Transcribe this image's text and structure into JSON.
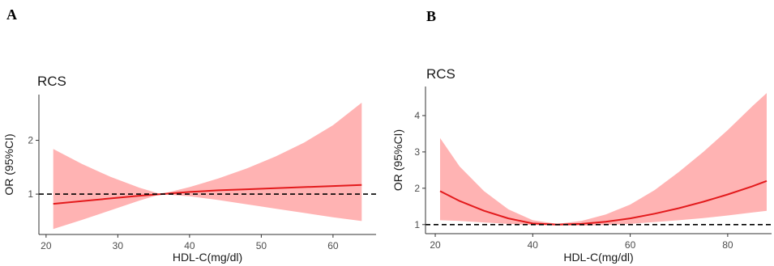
{
  "chart_data": [
    {
      "type": "line",
      "panel_label": "A",
      "title": "RCS",
      "xlabel": "HDL-C(mg/dl)",
      "ylabel": "OR (95%CI)",
      "xlim": [
        19,
        66
      ],
      "ylim": [
        0.25,
        2.85
      ],
      "xticks": [
        20,
        30,
        40,
        50,
        60
      ],
      "yticks": [
        1,
        2
      ],
      "reference_line": 1,
      "grid": false,
      "colors": {
        "line": "#e31a1c",
        "band": "#ffb3b3",
        "ref": "#000000"
      },
      "series": [
        {
          "x": [
            21,
            25,
            29,
            33,
            36,
            40,
            44,
            48,
            52,
            56,
            60,
            64
          ],
          "y": [
            0.82,
            0.87,
            0.92,
            0.97,
            1.0,
            1.04,
            1.07,
            1.09,
            1.11,
            1.13,
            1.15,
            1.17
          ],
          "lower": [
            0.35,
            0.52,
            0.7,
            0.88,
            1.0,
            0.96,
            0.89,
            0.81,
            0.73,
            0.65,
            0.57,
            0.5
          ],
          "upper": [
            1.84,
            1.56,
            1.32,
            1.12,
            1.0,
            1.13,
            1.29,
            1.48,
            1.7,
            1.96,
            2.28,
            2.7
          ]
        }
      ]
    },
    {
      "type": "line",
      "panel_label": "B",
      "title": "RCS",
      "xlabel": "HDL-C(mg/dl)",
      "ylabel": "OR (95%CI)",
      "xlim": [
        18,
        89
      ],
      "ylim": [
        0.75,
        4.8
      ],
      "xticks": [
        20,
        40,
        60,
        80
      ],
      "yticks": [
        1,
        2,
        3,
        4
      ],
      "reference_line": 1,
      "grid": false,
      "colors": {
        "line": "#e31a1c",
        "band": "#ffb3b3",
        "ref": "#000000"
      },
      "series": [
        {
          "x": [
            21,
            25,
            30,
            35,
            40,
            45,
            50,
            55,
            60,
            65,
            70,
            75,
            80,
            85,
            88
          ],
          "y": [
            1.92,
            1.65,
            1.38,
            1.17,
            1.03,
            1.0,
            1.02,
            1.08,
            1.17,
            1.3,
            1.45,
            1.63,
            1.83,
            2.05,
            2.2
          ],
          "lower": [
            1.12,
            1.1,
            1.06,
            1.02,
            0.99,
            0.98,
            0.97,
            0.99,
            1.02,
            1.07,
            1.12,
            1.18,
            1.25,
            1.33,
            1.38
          ],
          "upper": [
            3.38,
            2.6,
            1.92,
            1.42,
            1.12,
            1.02,
            1.1,
            1.28,
            1.55,
            1.95,
            2.45,
            3.0,
            3.6,
            4.25,
            4.62
          ]
        }
      ]
    }
  ]
}
